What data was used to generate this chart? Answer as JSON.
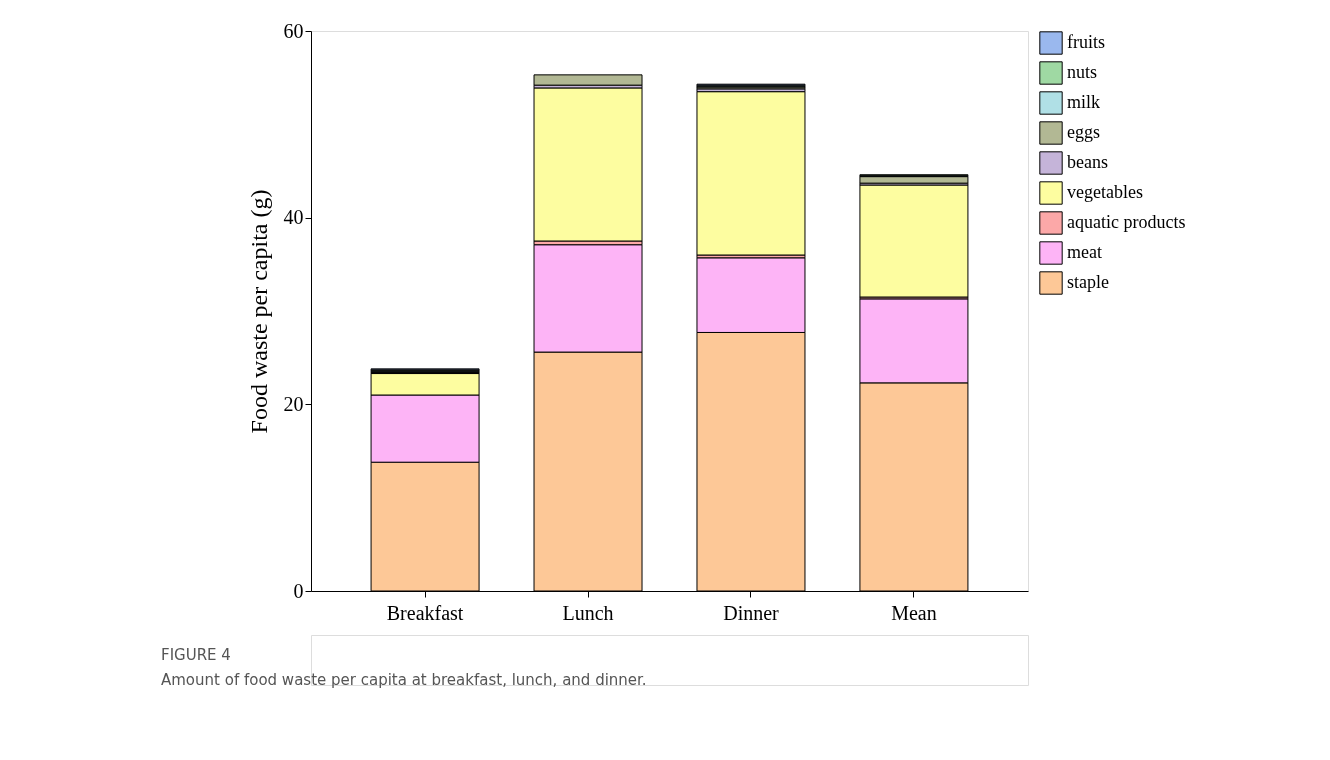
{
  "chart_data": {
    "type": "bar",
    "stacked": true,
    "ylabel": "Food waste per capita (g)",
    "categories": [
      "Breakfast",
      "Lunch",
      "Dinner",
      "Mean"
    ],
    "ylim": [
      0,
      60
    ],
    "yticks": [
      0,
      20,
      40,
      60
    ],
    "grid": false,
    "legend": "right",
    "annotations": [
      "FIGURE 4",
      "Amount of food waste per capita at breakfast, lunch, and dinner."
    ],
    "series": [
      {
        "name": "staple",
        "color": "#fdc897",
        "values": [
          13.8,
          25.6,
          27.7,
          22.3
        ]
      },
      {
        "name": "meat",
        "color": "#fdb4f6",
        "values": [
          7.2,
          11.5,
          8.0,
          9.0
        ]
      },
      {
        "name": "aquatic products",
        "color": "#fca8a8",
        "values": [
          null,
          0.4,
          0.3,
          0.2
        ]
      },
      {
        "name": "vegetables",
        "color": "#fdfda0",
        "values": [
          2.3,
          16.4,
          17.5,
          12.0
        ]
      },
      {
        "name": "beans",
        "color": "#c5b4d9",
        "values": [
          0.1,
          0.3,
          0.3,
          0.2
        ]
      },
      {
        "name": "eggs",
        "color": "#b2b894",
        "values": [
          0.1,
          1.1,
          0.2,
          0.7
        ]
      },
      {
        "name": "milk",
        "color": "#b0e0e6",
        "values": [
          0.1,
          null,
          0.1,
          0.1
        ]
      },
      {
        "name": "nuts",
        "color": "#9fd9a3",
        "values": [
          0.1,
          null,
          0.1,
          0.1
        ]
      },
      {
        "name": "fruits",
        "color": "#9ab8ee",
        "values": [
          0.1,
          null,
          0.1,
          null
        ]
      }
    ]
  }
}
